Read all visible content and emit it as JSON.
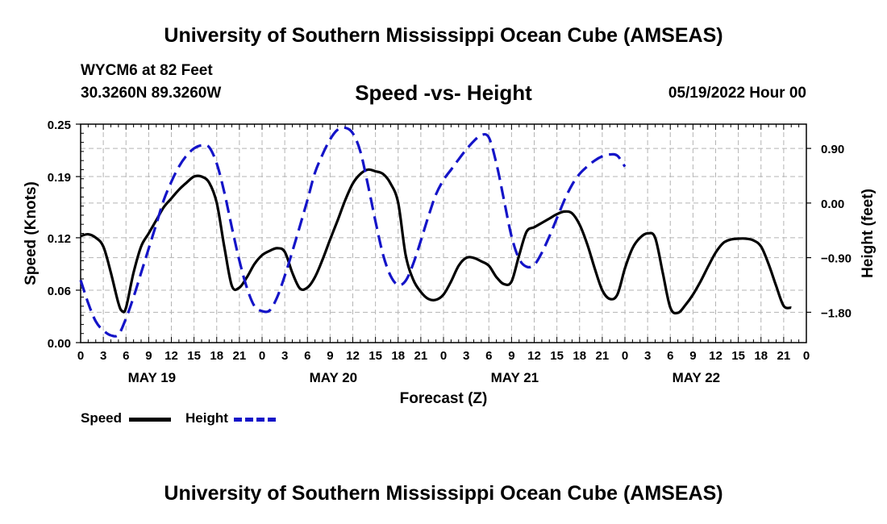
{
  "header": {
    "title": "University of Southern Mississippi Ocean Cube (AMSEAS)",
    "station": "WYCM6 at 82 Feet",
    "coords": "30.3260N  89.3260W",
    "date": "05/19/2022 Hour 00"
  },
  "footer": {
    "title": "University of Southern Mississippi Ocean Cube (AMSEAS)"
  },
  "legend": {
    "speed_label": "Speed",
    "height_label": "Height"
  },
  "colors": {
    "speed": "#000000",
    "height": "#1414c8",
    "grid": "#b4b4b4"
  },
  "chart_data": {
    "type": "line",
    "title": "Speed -vs- Height",
    "xlabel": "Forecast (Z)",
    "ylabel": "Speed (Knots)",
    "y2label": "Height (feet)",
    "x_range_hours": [
      0,
      96
    ],
    "x_tick_labels": [
      "0",
      "3",
      "6",
      "9",
      "12",
      "15",
      "18",
      "21",
      "0",
      "3",
      "6",
      "9",
      "12",
      "15",
      "18",
      "21",
      "0",
      "3",
      "6",
      "9",
      "12",
      "15",
      "18",
      "21",
      "0",
      "3",
      "6",
      "9",
      "12",
      "15",
      "18",
      "21",
      "0"
    ],
    "day_labels": [
      {
        "label": "MAY 19",
        "hour": 9
      },
      {
        "label": "MAY 20",
        "hour": 33
      },
      {
        "label": "MAY 21",
        "hour": 57
      },
      {
        "label": "MAY 22",
        "hour": 81
      }
    ],
    "y_left": {
      "ylim": [
        0,
        0.25
      ],
      "ticks": [
        0.0,
        0.06,
        0.12,
        0.19,
        0.25
      ],
      "tick_labels": [
        "0.00",
        "0.06",
        "0.12",
        "0.19",
        "0.25"
      ]
    },
    "y_right": {
      "ylim": [
        -2.3,
        1.3
      ],
      "ticks": [
        -1.8,
        -0.9,
        0.0,
        0.9
      ],
      "tick_labels": [
        "−1.80",
        "−0.90",
        "0.00",
        "0.90"
      ]
    },
    "grid": true,
    "series": [
      {
        "name": "Speed",
        "axis": "left",
        "style": "solid",
        "points": [
          [
            0,
            0.122
          ],
          [
            1,
            0.124
          ],
          [
            2,
            0.12
          ],
          [
            3,
            0.11
          ],
          [
            4,
            0.08
          ],
          [
            5,
            0.045
          ],
          [
            5.5,
            0.036
          ],
          [
            6,
            0.04
          ],
          [
            7,
            0.08
          ],
          [
            8,
            0.11
          ],
          [
            9,
            0.125
          ],
          [
            10,
            0.14
          ],
          [
            11,
            0.155
          ],
          [
            12,
            0.165
          ],
          [
            13,
            0.175
          ],
          [
            14,
            0.183
          ],
          [
            15,
            0.19
          ],
          [
            16,
            0.19
          ],
          [
            17,
            0.183
          ],
          [
            18,
            0.16
          ],
          [
            19,
            0.11
          ],
          [
            20,
            0.065
          ],
          [
            21,
            0.063
          ],
          [
            22,
            0.075
          ],
          [
            23,
            0.09
          ],
          [
            24,
            0.1
          ],
          [
            25,
            0.105
          ],
          [
            26,
            0.108
          ],
          [
            27,
            0.104
          ],
          [
            28,
            0.08
          ],
          [
            29,
            0.062
          ],
          [
            30,
            0.063
          ],
          [
            31,
            0.075
          ],
          [
            32,
            0.095
          ],
          [
            33,
            0.118
          ],
          [
            34,
            0.14
          ],
          [
            35,
            0.163
          ],
          [
            36,
            0.182
          ],
          [
            37,
            0.193
          ],
          [
            38,
            0.198
          ],
          [
            39,
            0.196
          ],
          [
            40,
            0.193
          ],
          [
            41,
            0.182
          ],
          [
            42,
            0.16
          ],
          [
            43,
            0.1
          ],
          [
            44,
            0.072
          ],
          [
            45,
            0.058
          ],
          [
            46,
            0.05
          ],
          [
            47,
            0.049
          ],
          [
            48,
            0.055
          ],
          [
            49,
            0.07
          ],
          [
            50,
            0.088
          ],
          [
            51,
            0.097
          ],
          [
            52,
            0.097
          ],
          [
            53,
            0.093
          ],
          [
            54,
            0.088
          ],
          [
            55,
            0.075
          ],
          [
            56,
            0.067
          ],
          [
            57,
            0.07
          ],
          [
            58,
            0.1
          ],
          [
            59,
            0.127
          ],
          [
            60,
            0.132
          ],
          [
            61,
            0.137
          ],
          [
            62,
            0.142
          ],
          [
            63,
            0.147
          ],
          [
            64,
            0.15
          ],
          [
            65,
            0.148
          ],
          [
            66,
            0.135
          ],
          [
            67,
            0.113
          ],
          [
            68,
            0.085
          ],
          [
            69,
            0.06
          ],
          [
            70,
            0.05
          ],
          [
            71,
            0.055
          ],
          [
            72,
            0.085
          ],
          [
            73,
            0.108
          ],
          [
            74,
            0.12
          ],
          [
            75,
            0.125
          ],
          [
            76,
            0.12
          ],
          [
            77,
            0.08
          ],
          [
            78,
            0.04
          ],
          [
            79,
            0.034
          ],
          [
            80,
            0.043
          ],
          [
            81,
            0.055
          ],
          [
            82,
            0.07
          ],
          [
            83,
            0.087
          ],
          [
            84,
            0.103
          ],
          [
            85,
            0.114
          ],
          [
            86,
            0.118
          ],
          [
            87,
            0.119
          ],
          [
            88,
            0.119
          ],
          [
            89,
            0.117
          ],
          [
            90,
            0.11
          ],
          [
            91,
            0.09
          ],
          [
            92,
            0.065
          ],
          [
            93,
            0.042
          ],
          [
            94,
            0.04
          ]
        ]
      },
      {
        "name": "Height",
        "axis": "right",
        "style": "dashed",
        "points": [
          [
            0,
            -1.27
          ],
          [
            1,
            -1.65
          ],
          [
            2,
            -1.95
          ],
          [
            3,
            -2.1
          ],
          [
            4,
            -2.18
          ],
          [
            5,
            -2.17
          ],
          [
            6,
            -1.9
          ],
          [
            7,
            -1.55
          ],
          [
            8,
            -1.15
          ],
          [
            9,
            -0.75
          ],
          [
            10,
            -0.35
          ],
          [
            11,
            0.05
          ],
          [
            12,
            0.35
          ],
          [
            13,
            0.6
          ],
          [
            14,
            0.78
          ],
          [
            15,
            0.9
          ],
          [
            16,
            0.95
          ],
          [
            17,
            0.92
          ],
          [
            18,
            0.65
          ],
          [
            19,
            0.18
          ],
          [
            20,
            -0.4
          ],
          [
            21,
            -0.95
          ],
          [
            22,
            -1.4
          ],
          [
            23,
            -1.7
          ],
          [
            24,
            -1.78
          ],
          [
            25,
            -1.77
          ],
          [
            26,
            -1.55
          ],
          [
            27,
            -1.2
          ],
          [
            28,
            -0.8
          ],
          [
            29,
            -0.38
          ],
          [
            30,
            0.05
          ],
          [
            31,
            0.5
          ],
          [
            32,
            0.8
          ],
          [
            33,
            1.05
          ],
          [
            34,
            1.21
          ],
          [
            35,
            1.24
          ],
          [
            36,
            1.15
          ],
          [
            37,
            0.85
          ],
          [
            38,
            0.3
          ],
          [
            39,
            -0.3
          ],
          [
            40,
            -0.85
          ],
          [
            41,
            -1.2
          ],
          [
            42,
            -1.35
          ],
          [
            43,
            -1.28
          ],
          [
            44,
            -1.0
          ],
          [
            45,
            -0.62
          ],
          [
            46,
            -0.22
          ],
          [
            47,
            0.14
          ],
          [
            48,
            0.38
          ],
          [
            49,
            0.55
          ],
          [
            50,
            0.72
          ],
          [
            51,
            0.88
          ],
          [
            52,
            1.02
          ],
          [
            53,
            1.12
          ],
          [
            54,
            1.08
          ],
          [
            55,
            0.65
          ],
          [
            56,
            0.05
          ],
          [
            57,
            -0.55
          ],
          [
            58,
            -0.92
          ],
          [
            59,
            -1.05
          ],
          [
            60,
            -1.02
          ],
          [
            61,
            -0.82
          ],
          [
            62,
            -0.55
          ],
          [
            63,
            -0.25
          ],
          [
            64,
            0.05
          ],
          [
            65,
            0.3
          ],
          [
            66,
            0.48
          ],
          [
            67,
            0.6
          ],
          [
            68,
            0.7
          ],
          [
            69,
            0.77
          ],
          [
            70,
            0.8
          ],
          [
            71,
            0.78
          ],
          [
            72,
            0.6
          ]
        ]
      }
    ]
  }
}
